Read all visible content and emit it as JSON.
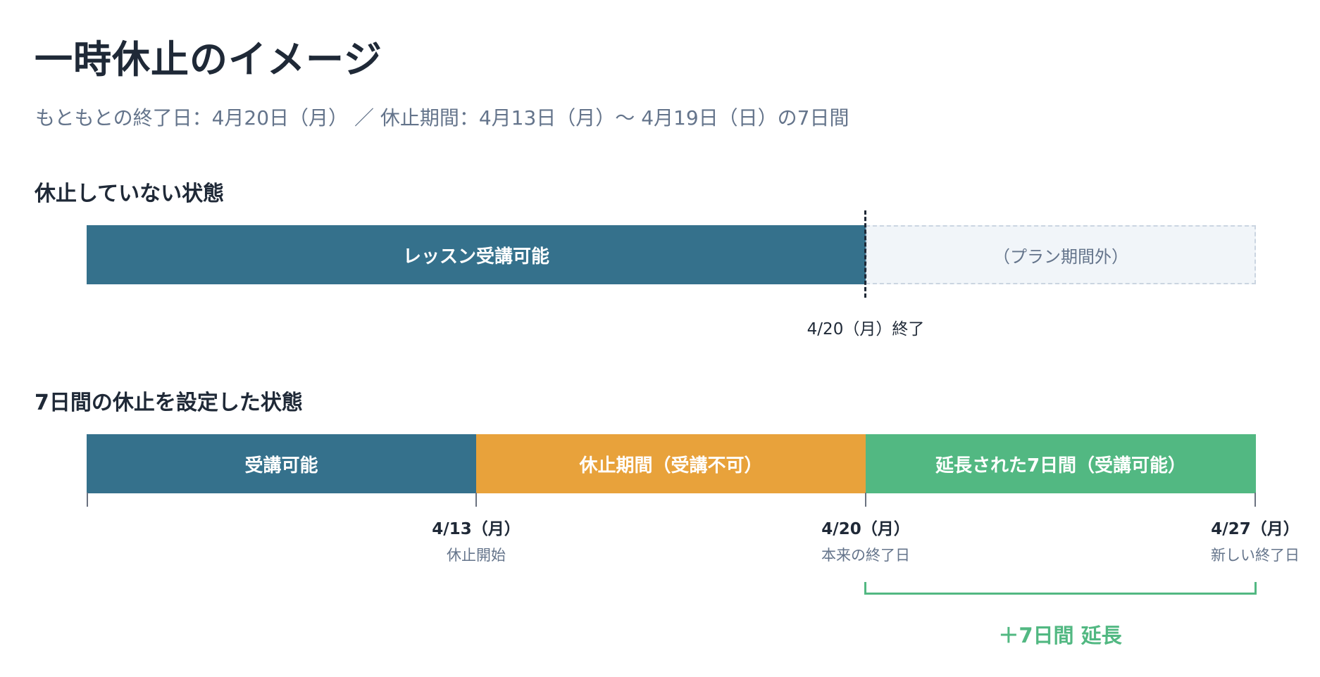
{
  "title": "一時休止のイメージ",
  "subtitle": "もともとの終了日：4月20日（月） ／ 休止期間：4月13日（月）〜 4月19日（日）の7日間",
  "section1": {
    "heading": "休止していない状態",
    "bar_available": "レッスン受講可能",
    "bar_outside": "（プラン期間外）",
    "end_label": "4/20（月）終了"
  },
  "section2": {
    "heading": "7日間の休止を設定した状態",
    "bar_available": "受講可能",
    "bar_paused": "休止期間（受講不可）",
    "bar_extended": "延長された7日間（受講可能）",
    "markers": [
      {
        "date": "4/13（月）",
        "caption": "休止開始"
      },
      {
        "date": "4/20（月）",
        "caption": "本来の終了日"
      },
      {
        "date": "4/27（月）",
        "caption": "新しい終了日"
      }
    ],
    "extension_label": "＋7日間 延長"
  },
  "colors": {
    "available": "#35718c",
    "paused": "#e8a23b",
    "extended": "#52b882",
    "outside": "#f1f5f9"
  }
}
